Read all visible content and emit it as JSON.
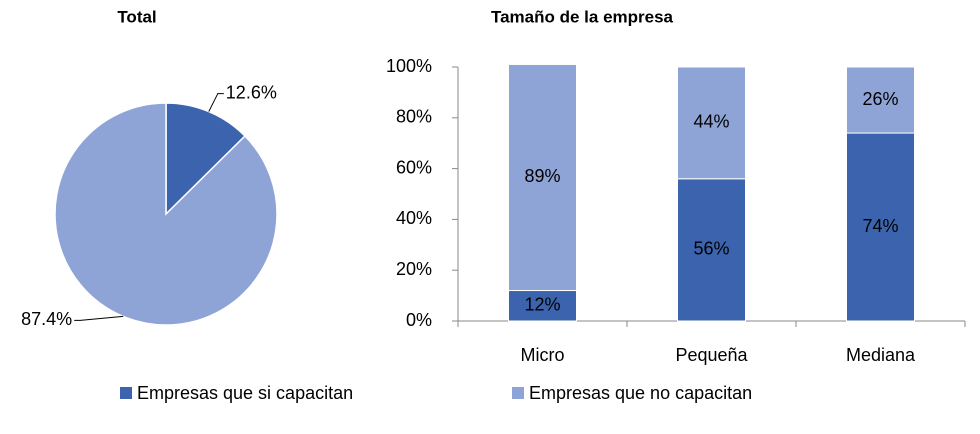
{
  "chart_data": [
    {
      "type": "pie",
      "title": "Total",
      "values": [
        12.6,
        87.4
      ],
      "value_labels": [
        "12.6%",
        "87.4%"
      ],
      "colors": [
        "#3c64ae",
        "#8fa4d6"
      ]
    },
    {
      "type": "stacked_bar",
      "title": "Tamaño de la empresa",
      "categories": [
        "Micro",
        "Pequeña",
        "Mediana"
      ],
      "series": [
        {
          "name": "Empresas que si capacitan",
          "color": "#3c64ae",
          "values": [
            12,
            56,
            74
          ],
          "value_labels": [
            "12%",
            "56%",
            "74%"
          ]
        },
        {
          "name": "Empresas que no capacitan",
          "color": "#8fa4d6",
          "values": [
            89,
            44,
            26
          ],
          "value_labels": [
            "89%",
            "44%",
            "26%"
          ]
        }
      ],
      "ylim": [
        0,
        100
      ],
      "yticks": [
        {
          "value": 0,
          "label": "0%"
        },
        {
          "value": 20,
          "label": "20%"
        },
        {
          "value": 40,
          "label": "40%"
        },
        {
          "value": 60,
          "label": "60%"
        },
        {
          "value": 80,
          "label": "80%"
        },
        {
          "value": 100,
          "label": "100%"
        }
      ],
      "legend": "bottom"
    }
  ]
}
